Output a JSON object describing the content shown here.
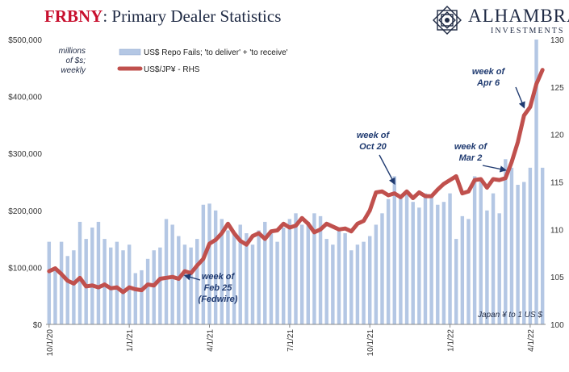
{
  "header": {
    "title_accent": "FRBNY",
    "title_rest": ": Primary Dealer Statistics",
    "logo_name": "ALHAMBRA",
    "logo_sub": "INVESTMENTS",
    "logo_icon": "alhambra-star-icon"
  },
  "colors": {
    "bars": "#b4c7e4",
    "line": "#c0504d",
    "annotation": "#1f3a70"
  },
  "chart_data": {
    "type": "bar",
    "title": "Primary Dealer Statistics",
    "unit_note": [
      "millions",
      "of $s;",
      "weekly"
    ],
    "legend": {
      "bars": "US$ Repo Fails; 'to deliver' + 'to receive'",
      "line": "US$/JP¥ - RHS",
      "placement": "top-left"
    },
    "footnote": "Japan ¥ to 1 US $",
    "left_axis": {
      "ylim": [
        0,
        500000
      ],
      "ticks": [
        0,
        100000,
        200000,
        300000,
        400000,
        500000
      ],
      "tick_labels": [
        "$0",
        "$100,000",
        "$200,000",
        "$300,000",
        "$400,000",
        "$500,000"
      ]
    },
    "right_axis": {
      "ylim": [
        100,
        130
      ],
      "ticks": [
        100,
        105,
        110,
        115,
        120,
        125,
        130
      ],
      "tick_labels": [
        "100",
        "105",
        "110",
        "115",
        "120",
        "125",
        "130"
      ]
    },
    "x_tick_labels": [
      "10/1/20",
      "1/1/21",
      "4/1/21",
      "7/1/21",
      "10/1/21",
      "1/1/22",
      "4/1/22"
    ],
    "x_tick_weeks": [
      0,
      13,
      26,
      39,
      52,
      65,
      78
    ],
    "n_weeks": 81,
    "series": [
      {
        "name": "US$ Repo Fails; 'to deliver' + 'to receive'",
        "kind": "bar",
        "values": [
          145000,
          100000,
          145000,
          120000,
          130000,
          180000,
          150000,
          170000,
          180000,
          150000,
          135000,
          145000,
          130000,
          140000,
          90000,
          95000,
          115000,
          130000,
          135000,
          185000,
          175000,
          155000,
          140000,
          135000,
          150000,
          210000,
          212000,
          200000,
          185000,
          165000,
          160000,
          175000,
          160000,
          140000,
          165000,
          180000,
          160000,
          145000,
          170000,
          185000,
          195000,
          175000,
          180000,
          195000,
          190000,
          150000,
          140000,
          165000,
          160000,
          130000,
          140000,
          145000,
          155000,
          175000,
          195000,
          220000,
          260000,
          225000,
          235000,
          215000,
          205000,
          230000,
          225000,
          210000,
          215000,
          230000,
          150000,
          190000,
          185000,
          260000,
          255000,
          200000,
          230000,
          195000,
          290000,
          275000,
          245000,
          250000,
          275000,
          500000,
          275000
        ]
      },
      {
        "name": "US$/JP¥ - RHS",
        "kind": "line",
        "axis": "right",
        "values": [
          105.6,
          105.9,
          105.3,
          104.6,
          104.3,
          104.9,
          104.0,
          104.1,
          103.9,
          104.2,
          103.8,
          103.9,
          103.4,
          103.9,
          103.7,
          103.6,
          104.2,
          104.1,
          104.8,
          104.9,
          105.0,
          104.8,
          105.6,
          105.4,
          106.2,
          106.9,
          108.5,
          108.9,
          109.6,
          110.6,
          109.6,
          108.8,
          108.4,
          109.3,
          109.6,
          109.0,
          109.8,
          109.9,
          110.6,
          110.2,
          110.4,
          111.2,
          110.6,
          109.7,
          110.0,
          110.6,
          110.3,
          110.0,
          110.1,
          109.8,
          110.6,
          110.9,
          112.0,
          113.9,
          114.0,
          113.6,
          113.8,
          113.4,
          114.0,
          113.3,
          113.9,
          113.5,
          113.5,
          114.2,
          114.8,
          115.2,
          115.6,
          113.8,
          114.0,
          115.2,
          115.3,
          114.4,
          115.3,
          115.2,
          115.4,
          117.1,
          119.2,
          122.0,
          122.9,
          125.3,
          126.8
        ]
      }
    ],
    "annotations": [
      {
        "lines": [
          "week of",
          "Feb 25",
          "(Fedwire)"
        ],
        "week": 21
      },
      {
        "lines": [
          "week of",
          "Oct 20"
        ],
        "week": 56
      },
      {
        "lines": [
          "week of",
          "Mar 2"
        ],
        "week": 74
      },
      {
        "lines": [
          "week of",
          "Apr 6"
        ],
        "week": 77
      }
    ]
  }
}
